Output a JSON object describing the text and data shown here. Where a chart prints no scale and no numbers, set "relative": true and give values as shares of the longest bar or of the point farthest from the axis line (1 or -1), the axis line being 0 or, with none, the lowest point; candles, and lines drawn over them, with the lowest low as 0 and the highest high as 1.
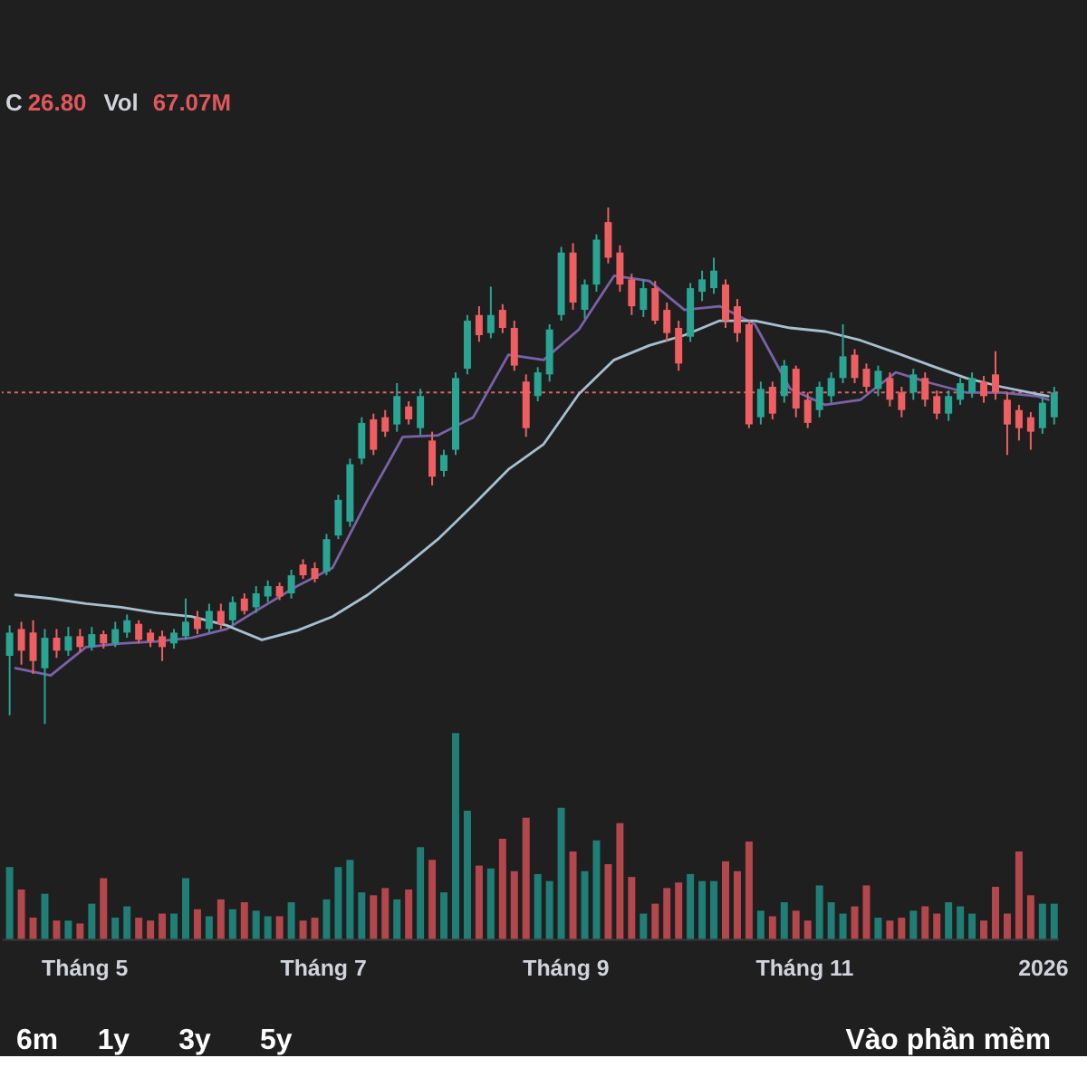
{
  "chart_data": [
    {
      "type": "candlestick",
      "relative": true,
      "annotations": [
        "C 26.80 Vol 67.07M"
      ],
      "xlim": [
        "2025-04-10",
        "2026-01-05"
      ],
      "x": [
        "2025-04-12",
        "2025-04-15",
        "2025-04-18",
        "2025-04-21",
        "2025-04-24",
        "2025-04-27",
        "2025-04-30",
        "2025-05-03",
        "2025-05-06",
        "2025-05-09",
        "2025-05-12",
        "2025-05-15",
        "2025-05-18",
        "2025-05-21",
        "2025-05-24",
        "2025-05-27",
        "2025-05-30",
        "2025-06-02",
        "2025-06-05",
        "2025-06-08",
        "2025-06-11",
        "2025-06-14",
        "2025-06-17",
        "2025-06-20",
        "2025-06-23",
        "2025-06-26",
        "2025-06-29",
        "2025-07-02",
        "2025-07-05",
        "2025-07-08",
        "2025-07-11",
        "2025-07-14",
        "2025-07-17",
        "2025-07-20",
        "2025-07-23",
        "2025-07-26",
        "2025-07-29",
        "2025-08-01",
        "2025-08-04",
        "2025-08-07",
        "2025-08-10",
        "2025-08-13",
        "2025-08-16",
        "2025-08-19",
        "2025-08-22",
        "2025-08-25",
        "2025-08-28",
        "2025-08-31",
        "2025-09-03",
        "2025-09-06",
        "2025-09-09",
        "2025-09-12",
        "2025-09-15",
        "2025-09-18",
        "2025-09-21",
        "2025-09-24",
        "2025-09-27",
        "2025-09-30",
        "2025-10-03",
        "2025-10-06",
        "2025-10-09",
        "2025-10-12",
        "2025-10-15",
        "2025-10-18",
        "2025-10-21",
        "2025-10-24",
        "2025-10-27",
        "2025-10-30",
        "2025-11-02",
        "2025-11-05",
        "2025-11-08",
        "2025-11-11",
        "2025-11-14",
        "2025-11-17",
        "2025-11-20",
        "2025-11-23",
        "2025-11-26",
        "2025-11-29",
        "2025-12-02",
        "2025-12-05",
        "2025-12-08",
        "2025-12-11",
        "2025-12-14",
        "2025-12-17",
        "2025-12-20",
        "2025-12-23",
        "2025-12-26",
        "2025-12-29",
        "2026-01-01",
        "2026-01-04"
      ],
      "ohlc": [
        [
          0.132,
          0.191,
          0.017,
          0.177
        ],
        [
          0.184,
          0.198,
          0.115,
          0.142
        ],
        [
          0.177,
          0.201,
          0.097,
          0.122
        ],
        [
          0.108,
          0.184,
          0,
          0.167
        ],
        [
          0.167,
          0.184,
          0.128,
          0.142
        ],
        [
          0.142,
          0.188,
          0.132,
          0.17
        ],
        [
          0.17,
          0.184,
          0.139,
          0.149
        ],
        [
          0.149,
          0.188,
          0.142,
          0.174
        ],
        [
          0.174,
          0.181,
          0.146,
          0.156
        ],
        [
          0.156,
          0.198,
          0.149,
          0.184
        ],
        [
          0.177,
          0.212,
          0.167,
          0.201
        ],
        [
          0.194,
          0.201,
          0.156,
          0.163
        ],
        [
          0.177,
          0.184,
          0.149,
          0.16
        ],
        [
          0.17,
          0.181,
          0.122,
          0.149
        ],
        [
          0.156,
          0.184,
          0.146,
          0.177
        ],
        [
          0.17,
          0.243,
          0.163,
          0.198
        ],
        [
          0.205,
          0.219,
          0.174,
          0.184
        ],
        [
          0.184,
          0.233,
          0.177,
          0.219
        ],
        [
          0.219,
          0.233,
          0.184,
          0.194
        ],
        [
          0.201,
          0.247,
          0.191,
          0.236
        ],
        [
          0.243,
          0.253,
          0.212,
          0.219
        ],
        [
          0.226,
          0.267,
          0.215,
          0.253
        ],
        [
          0.247,
          0.278,
          0.236,
          0.267
        ],
        [
          0.267,
          0.274,
          0.24,
          0.247
        ],
        [
          0.253,
          0.299,
          0.243,
          0.288
        ],
        [
          0.309,
          0.319,
          0.281,
          0.288
        ],
        [
          0.302,
          0.313,
          0.274,
          0.281
        ],
        [
          0.295,
          0.368,
          0.288,
          0.358
        ],
        [
          0.365,
          0.444,
          0.358,
          0.434
        ],
        [
          0.392,
          0.514,
          0.382,
          0.503
        ],
        [
          0.514,
          0.594,
          0.503,
          0.583
        ],
        [
          0.59,
          0.601,
          0.521,
          0.531
        ],
        [
          0.594,
          0.608,
          0.556,
          0.566
        ],
        [
          0.58,
          0.66,
          0.566,
          0.635
        ],
        [
          0.615,
          0.625,
          0.58,
          0.59
        ],
        [
          0.573,
          0.649,
          0.559,
          0.635
        ],
        [
          0.549,
          0.566,
          0.462,
          0.479
        ],
        [
          0.49,
          0.531,
          0.479,
          0.521
        ],
        [
          0.531,
          0.681,
          0.521,
          0.67
        ],
        [
          0.688,
          0.792,
          0.677,
          0.781
        ],
        [
          0.792,
          0.809,
          0.74,
          0.753
        ],
        [
          0.757,
          0.847,
          0.747,
          0.792
        ],
        [
          0.802,
          0.813,
          0.757,
          0.767
        ],
        [
          0.767,
          0.781,
          0.684,
          0.694
        ],
        [
          0.663,
          0.677,
          0.556,
          0.573
        ],
        [
          0.635,
          0.691,
          0.625,
          0.681
        ],
        [
          0.677,
          0.774,
          0.663,
          0.764
        ],
        [
          0.792,
          0.924,
          0.781,
          0.913
        ],
        [
          0.913,
          0.931,
          0.802,
          0.816
        ],
        [
          0.802,
          0.861,
          0.785,
          0.851
        ],
        [
          0.851,
          0.948,
          0.837,
          0.938
        ],
        [
          0.972,
          1,
          0.892,
          0.903
        ],
        [
          0.913,
          0.927,
          0.837,
          0.851
        ],
        [
          0.861,
          0.872,
          0.792,
          0.809
        ],
        [
          0.802,
          0.861,
          0.788,
          0.844
        ],
        [
          0.844,
          0.858,
          0.774,
          0.781
        ],
        [
          0.802,
          0.816,
          0.74,
          0.757
        ],
        [
          0.767,
          0.781,
          0.684,
          0.698
        ],
        [
          0.75,
          0.854,
          0.74,
          0.844
        ],
        [
          0.837,
          0.878,
          0.819,
          0.861
        ],
        [
          0.844,
          0.903,
          0.833,
          0.878
        ],
        [
          0.851,
          0.861,
          0.767,
          0.781
        ],
        [
          0.809,
          0.823,
          0.74,
          0.757
        ],
        [
          0.774,
          0.781,
          0.573,
          0.58
        ],
        [
          0.594,
          0.663,
          0.58,
          0.649
        ],
        [
          0.653,
          0.663,
          0.59,
          0.601
        ],
        [
          0.635,
          0.705,
          0.622,
          0.694
        ],
        [
          0.688,
          0.694,
          0.594,
          0.611
        ],
        [
          0.628,
          0.642,
          0.573,
          0.583
        ],
        [
          0.608,
          0.663,
          0.594,
          0.653
        ],
        [
          0.635,
          0.681,
          0.622,
          0.67
        ],
        [
          0.67,
          0.774,
          0.66,
          0.712
        ],
        [
          0.715,
          0.726,
          0.66,
          0.67
        ],
        [
          0.688,
          0.698,
          0.642,
          0.653
        ],
        [
          0.649,
          0.694,
          0.635,
          0.684
        ],
        [
          0.67,
          0.681,
          0.615,
          0.628
        ],
        [
          0.642,
          0.653,
          0.594,
          0.608
        ],
        [
          0.642,
          0.688,
          0.628,
          0.677
        ],
        [
          0.67,
          0.681,
          0.615,
          0.628
        ],
        [
          0.635,
          0.646,
          0.59,
          0.601
        ],
        [
          0.601,
          0.646,
          0.587,
          0.635
        ],
        [
          0.628,
          0.67,
          0.618,
          0.66
        ],
        [
          0.642,
          0.681,
          0.632,
          0.67
        ],
        [
          0.663,
          0.674,
          0.622,
          0.635
        ],
        [
          0.677,
          0.722,
          0.628,
          0.642
        ],
        [
          0.628,
          0.642,
          0.521,
          0.58
        ],
        [
          0.608,
          0.618,
          0.549,
          0.573
        ],
        [
          0.594,
          0.604,
          0.531,
          0.566
        ],
        [
          0.573,
          0.635,
          0.562,
          0.622
        ],
        [
          0.594,
          0.653,
          0.58,
          0.642
        ]
      ],
      "colors": [
        "#2aa593",
        "#ef5f62",
        "#ef5f62",
        "#2aa593",
        "#ef5f62",
        "#2aa593",
        "#ef5f62",
        "#2aa593",
        "#ef5f62",
        "#2aa593",
        "#2aa593",
        "#ef5f62",
        "#ef5f62",
        "#ef5f62",
        "#2aa593",
        "#2aa593",
        "#ef5f62",
        "#2aa593",
        "#ef5f62",
        "#2aa593",
        "#ef5f62",
        "#2aa593",
        "#2aa593",
        "#ef5f62",
        "#2aa593",
        "#ef5f62",
        "#ef5f62",
        "#2aa593",
        "#2aa593",
        "#2aa593",
        "#2aa593",
        "#ef5f62",
        "#ef5f62",
        "#2aa593",
        "#ef5f62",
        "#2aa593",
        "#ef5f62",
        "#2aa593",
        "#2aa593",
        "#2aa593",
        "#ef5f62",
        "#2aa593",
        "#ef5f62",
        "#ef5f62",
        "#ef5f62",
        "#2aa593",
        "#2aa593",
        "#2aa593",
        "#ef5f62",
        "#2aa593",
        "#2aa593",
        "#ef5f62",
        "#ef5f62",
        "#ef5f62",
        "#2aa593",
        "#ef5f62",
        "#ef5f62",
        "#ef5f62",
        "#2aa593",
        "#2aa593",
        "#2aa593",
        "#ef5f62",
        "#ef5f62",
        "#ef5f62",
        "#2aa593",
        "#ef5f62",
        "#2aa593",
        "#ef5f62",
        "#ef5f62",
        "#2aa593",
        "#2aa593",
        "#2aa593",
        "#ef5f62",
        "#ef5f62",
        "#2aa593",
        "#ef5f62",
        "#ef5f62",
        "#2aa593",
        "#ef5f62",
        "#ef5f62",
        "#2aa593",
        "#2aa593",
        "#2aa593",
        "#ef5f62",
        "#ef5f62",
        "#ef5f62",
        "#ef5f62",
        "#ef5f62",
        "#2aa593",
        "#2aa593"
      ],
      "series": [
        {
          "type": "line",
          "color": "#7a62a8",
          "x": [
            "2025-04-13T12:00",
            "2025-04-22T12:00",
            "2025-05-01T12:00",
            "2025-05-10T12:00",
            "2025-05-19T12:00",
            "2025-05-28T12:00",
            "2025-06-06T12:00",
            "2025-06-15T12:00",
            "2025-06-24T12:00",
            "2025-07-03T12:00",
            "2025-07-12T12:00",
            "2025-07-21T12:00",
            "2025-07-30T12:00",
            "2025-08-08T12:00",
            "2025-08-17T12:00",
            "2025-08-26T12:00",
            "2025-09-04T12:00",
            "2025-09-13T12:00",
            "2025-09-22T12:00",
            "2025-10-01T12:00",
            "2025-10-10T12:00",
            "2025-10-19T12:00",
            "2025-10-28T12:00",
            "2025-11-06T12:00",
            "2025-11-15T12:00",
            "2025-11-24T12:00",
            "2025-12-03T12:00",
            "2025-12-12T12:00",
            "2025-12-21T12:00",
            "2025-12-30T12:00",
            "2026-01-02T12:00"
          ],
          "values": [
            0.108,
            0.094,
            0.149,
            0.156,
            0.16,
            0.167,
            0.184,
            0.226,
            0.267,
            0.302,
            0.434,
            0.556,
            0.559,
            0.594,
            0.715,
            0.705,
            0.764,
            0.868,
            0.858,
            0.802,
            0.809,
            0.774,
            0.649,
            0.618,
            0.628,
            0.681,
            0.66,
            0.642,
            0.642,
            0.635,
            0.628
          ]
        },
        {
          "type": "line",
          "color": "#a7c0d0",
          "x": [
            "2025-04-13T12:00",
            "2025-04-22T12:00",
            "2025-05-01T12:00",
            "2025-05-10T12:00",
            "2025-05-19T12:00",
            "2025-05-28T12:00",
            "2025-06-06T12:00",
            "2025-06-15T12:00",
            "2025-06-24T12:00",
            "2025-07-03T12:00",
            "2025-07-12T12:00",
            "2025-07-21T12:00",
            "2025-07-30T12:00",
            "2025-08-08T12:00",
            "2025-08-17T12:00",
            "2025-08-26T12:00",
            "2025-09-04T12:00",
            "2025-09-13T12:00",
            "2025-09-22T12:00",
            "2025-10-01T12:00",
            "2025-10-10T12:00",
            "2025-10-19T12:00",
            "2025-10-28T12:00",
            "2025-11-06T12:00",
            "2025-11-15T12:00",
            "2025-11-24T12:00",
            "2025-12-03T12:00",
            "2025-12-12T12:00",
            "2025-12-21T12:00",
            "2025-12-30T12:00",
            "2026-01-02T12:00"
          ],
          "values": [
            0.25,
            0.243,
            0.233,
            0.226,
            0.215,
            0.208,
            0.191,
            0.163,
            0.181,
            0.208,
            0.25,
            0.302,
            0.358,
            0.424,
            0.493,
            0.542,
            0.639,
            0.705,
            0.733,
            0.753,
            0.781,
            0.781,
            0.767,
            0.76,
            0.743,
            0.719,
            0.694,
            0.67,
            0.653,
            0.639,
            0.635
          ]
        }
      ],
      "ref_lines": [
        {
          "axis": "y",
          "value": 0.642,
          "color": "#d9656b",
          "line_style": "dotted"
        }
      ]
    },
    {
      "type": "bar",
      "relative": true,
      "annotations": [
        "6m",
        "1y",
        "3y",
        "5y",
        "Vào phần mềm"
      ],
      "xlim": [
        "2025-04-10",
        "2026-01-05"
      ],
      "xticks": [
        {
          "value": "2025-05-01",
          "label": "Tháng 5"
        },
        {
          "value": "2025-07-01",
          "label": "Tháng 7"
        },
        {
          "value": "2025-09-01",
          "label": "Tháng 9"
        },
        {
          "value": "2025-11-01",
          "label": "Tháng 11"
        },
        {
          "value": "2026-01-01",
          "label": "2026"
        }
      ],
      "x": [
        "2025-04-12",
        "2025-04-15",
        "2025-04-18",
        "2025-04-21",
        "2025-04-24",
        "2025-04-27",
        "2025-04-30",
        "2025-05-03",
        "2025-05-06",
        "2025-05-09",
        "2025-05-12",
        "2025-05-15",
        "2025-05-18",
        "2025-05-21",
        "2025-05-24",
        "2025-05-27",
        "2025-05-30",
        "2025-06-02",
        "2025-06-05",
        "2025-06-08",
        "2025-06-11",
        "2025-06-14",
        "2025-06-17",
        "2025-06-20",
        "2025-06-23",
        "2025-06-26",
        "2025-06-29",
        "2025-07-02",
        "2025-07-05",
        "2025-07-08",
        "2025-07-11",
        "2025-07-14",
        "2025-07-17",
        "2025-07-20",
        "2025-07-23",
        "2025-07-26",
        "2025-07-29",
        "2025-08-01",
        "2025-08-04",
        "2025-08-07",
        "2025-08-10",
        "2025-08-13",
        "2025-08-16",
        "2025-08-19",
        "2025-08-22",
        "2025-08-25",
        "2025-08-28",
        "2025-08-31",
        "2025-09-03",
        "2025-09-06",
        "2025-09-09",
        "2025-09-12",
        "2025-09-15",
        "2025-09-18",
        "2025-09-21",
        "2025-09-24",
        "2025-09-27",
        "2025-09-30",
        "2025-10-03",
        "2025-10-06",
        "2025-10-09",
        "2025-10-12",
        "2025-10-15",
        "2025-10-18",
        "2025-10-21",
        "2025-10-24",
        "2025-10-27",
        "2025-10-30",
        "2025-11-02",
        "2025-11-05",
        "2025-11-08",
        "2025-11-11",
        "2025-11-14",
        "2025-11-17",
        "2025-11-20",
        "2025-11-23",
        "2025-11-26",
        "2025-11-29",
        "2025-12-02",
        "2025-12-05",
        "2025-12-08",
        "2025-12-11",
        "2025-12-14",
        "2025-12-17",
        "2025-12-20",
        "2025-12-23",
        "2025-12-26",
        "2025-12-29",
        "2026-01-01",
        "2026-01-04"
      ],
      "values": [
        0.349,
        0.24,
        0.103,
        0.219,
        0.089,
        0.089,
        0.075,
        0.171,
        0.295,
        0.103,
        0.158,
        0.103,
        0.089,
        0.123,
        0.123,
        0.295,
        0.144,
        0.11,
        0.192,
        0.144,
        0.178,
        0.137,
        0.11,
        0.11,
        0.178,
        0.089,
        0.103,
        0.192,
        0.349,
        0.384,
        0.226,
        0.212,
        0.247,
        0.192,
        0.24,
        0.445,
        0.384,
        0.226,
        1,
        0.623,
        0.356,
        0.342,
        0.486,
        0.329,
        0.589,
        0.315,
        0.281,
        0.637,
        0.425,
        0.329,
        0.479,
        0.363,
        0.562,
        0.301,
        0.123,
        0.171,
        0.247,
        0.274,
        0.315,
        0.281,
        0.281,
        0.377,
        0.329,
        0.473,
        0.137,
        0.11,
        0.178,
        0.137,
        0.089,
        0.26,
        0.178,
        0.123,
        0.158,
        0.26,
        0.103,
        0.089,
        0.103,
        0.137,
        0.158,
        0.123,
        0.178,
        0.158,
        0.123,
        0.089,
        0.253,
        0.123,
        0.425,
        0.212,
        0.171,
        0.171
      ],
      "colors": [
        "#1f7f76",
        "#b4474c",
        "#b4474c",
        "#1f7f76",
        "#b4474c",
        "#1f7f76",
        "#b4474c",
        "#1f7f76",
        "#b4474c",
        "#1f7f76",
        "#1f7f76",
        "#b4474c",
        "#b4474c",
        "#b4474c",
        "#1f7f76",
        "#1f7f76",
        "#b4474c",
        "#1f7f76",
        "#b4474c",
        "#1f7f76",
        "#b4474c",
        "#1f7f76",
        "#1f7f76",
        "#b4474c",
        "#1f7f76",
        "#b4474c",
        "#b4474c",
        "#1f7f76",
        "#1f7f76",
        "#1f7f76",
        "#1f7f76",
        "#b4474c",
        "#b4474c",
        "#1f7f76",
        "#b4474c",
        "#1f7f76",
        "#b4474c",
        "#1f7f76",
        "#1f7f76",
        "#1f7f76",
        "#b4474c",
        "#1f7f76",
        "#b4474c",
        "#b4474c",
        "#b4474c",
        "#1f7f76",
        "#1f7f76",
        "#1f7f76",
        "#b4474c",
        "#1f7f76",
        "#1f7f76",
        "#b4474c",
        "#b4474c",
        "#b4474c",
        "#1f7f76",
        "#b4474c",
        "#b4474c",
        "#b4474c",
        "#1f7f76",
        "#1f7f76",
        "#1f7f76",
        "#b4474c",
        "#b4474c",
        "#b4474c",
        "#1f7f76",
        "#b4474c",
        "#1f7f76",
        "#b4474c",
        "#b4474c",
        "#1f7f76",
        "#1f7f76",
        "#1f7f76",
        "#b4474c",
        "#b4474c",
        "#1f7f76",
        "#b4474c",
        "#b4474c",
        "#1f7f76",
        "#b4474c",
        "#b4474c",
        "#1f7f76",
        "#1f7f76",
        "#1f7f76",
        "#b4474c",
        "#b4474c",
        "#b4474c",
        "#b4474c",
        "#b4474c",
        "#1f7f76",
        "#1f7f76"
      ]
    }
  ]
}
